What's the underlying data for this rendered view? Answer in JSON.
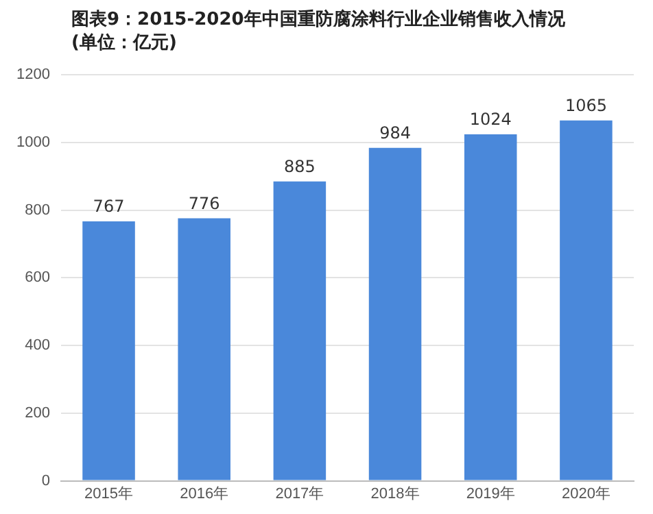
{
  "chart_data": {
    "type": "bar",
    "title": "图表9：2015-2020年中国重防腐涂料行业企业销售收入情况",
    "subtitle": "(单位：亿元)",
    "categories": [
      "2015年",
      "2016年",
      "2017年",
      "2018年",
      "2019年",
      "2020年"
    ],
    "values": [
      767,
      776,
      885,
      984,
      1024,
      1065
    ],
    "color": "#4a88da",
    "ylim": [
      0,
      1200
    ],
    "yticks": [
      0,
      200,
      400,
      600,
      800,
      1000,
      1200
    ],
    "grid": "y",
    "data_labels": true
  }
}
